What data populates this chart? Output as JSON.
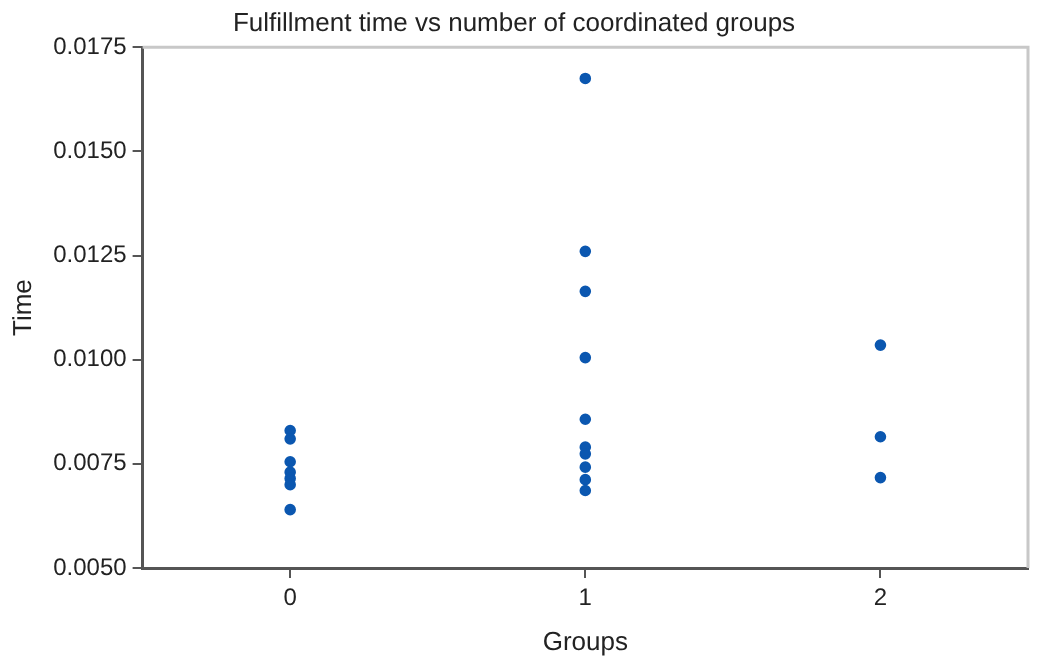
{
  "chart_data": {
    "type": "scatter",
    "title": "Fulfillment time vs number of coordinated groups",
    "xlabel": "Groups",
    "ylabel": "Time",
    "series": [
      {
        "color": "#0b57b0",
        "x": [
          0,
          0,
          0,
          0,
          0,
          0,
          0,
          1,
          1,
          1,
          1,
          1,
          1,
          1,
          1,
          1,
          1,
          2,
          2,
          2
        ],
        "values": [
          0.0083,
          0.0081,
          0.00755,
          0.0073,
          0.00715,
          0.007,
          0.0064,
          0.01675,
          0.0126,
          0.01164,
          0.01005,
          0.00857,
          0.0079,
          0.00774,
          0.00742,
          0.00712,
          0.00686,
          0.01035,
          0.00815,
          0.00717
        ]
      }
    ],
    "xlim": [
      -0.5,
      2.5
    ],
    "xticks": [
      0,
      1,
      2
    ],
    "ylim": [
      0.005,
      0.0175
    ],
    "yticks": [
      {
        "value": 0.005,
        "label": "0.0050"
      },
      {
        "value": 0.0075,
        "label": "0.0075"
      },
      {
        "value": 0.01,
        "label": "0.0100"
      },
      {
        "value": 0.0125,
        "label": "0.0125"
      },
      {
        "value": 0.015,
        "label": "0.0150"
      },
      {
        "value": 0.0175,
        "label": "0.0175"
      }
    ],
    "grid": false,
    "legend": false,
    "marker": "circle"
  }
}
